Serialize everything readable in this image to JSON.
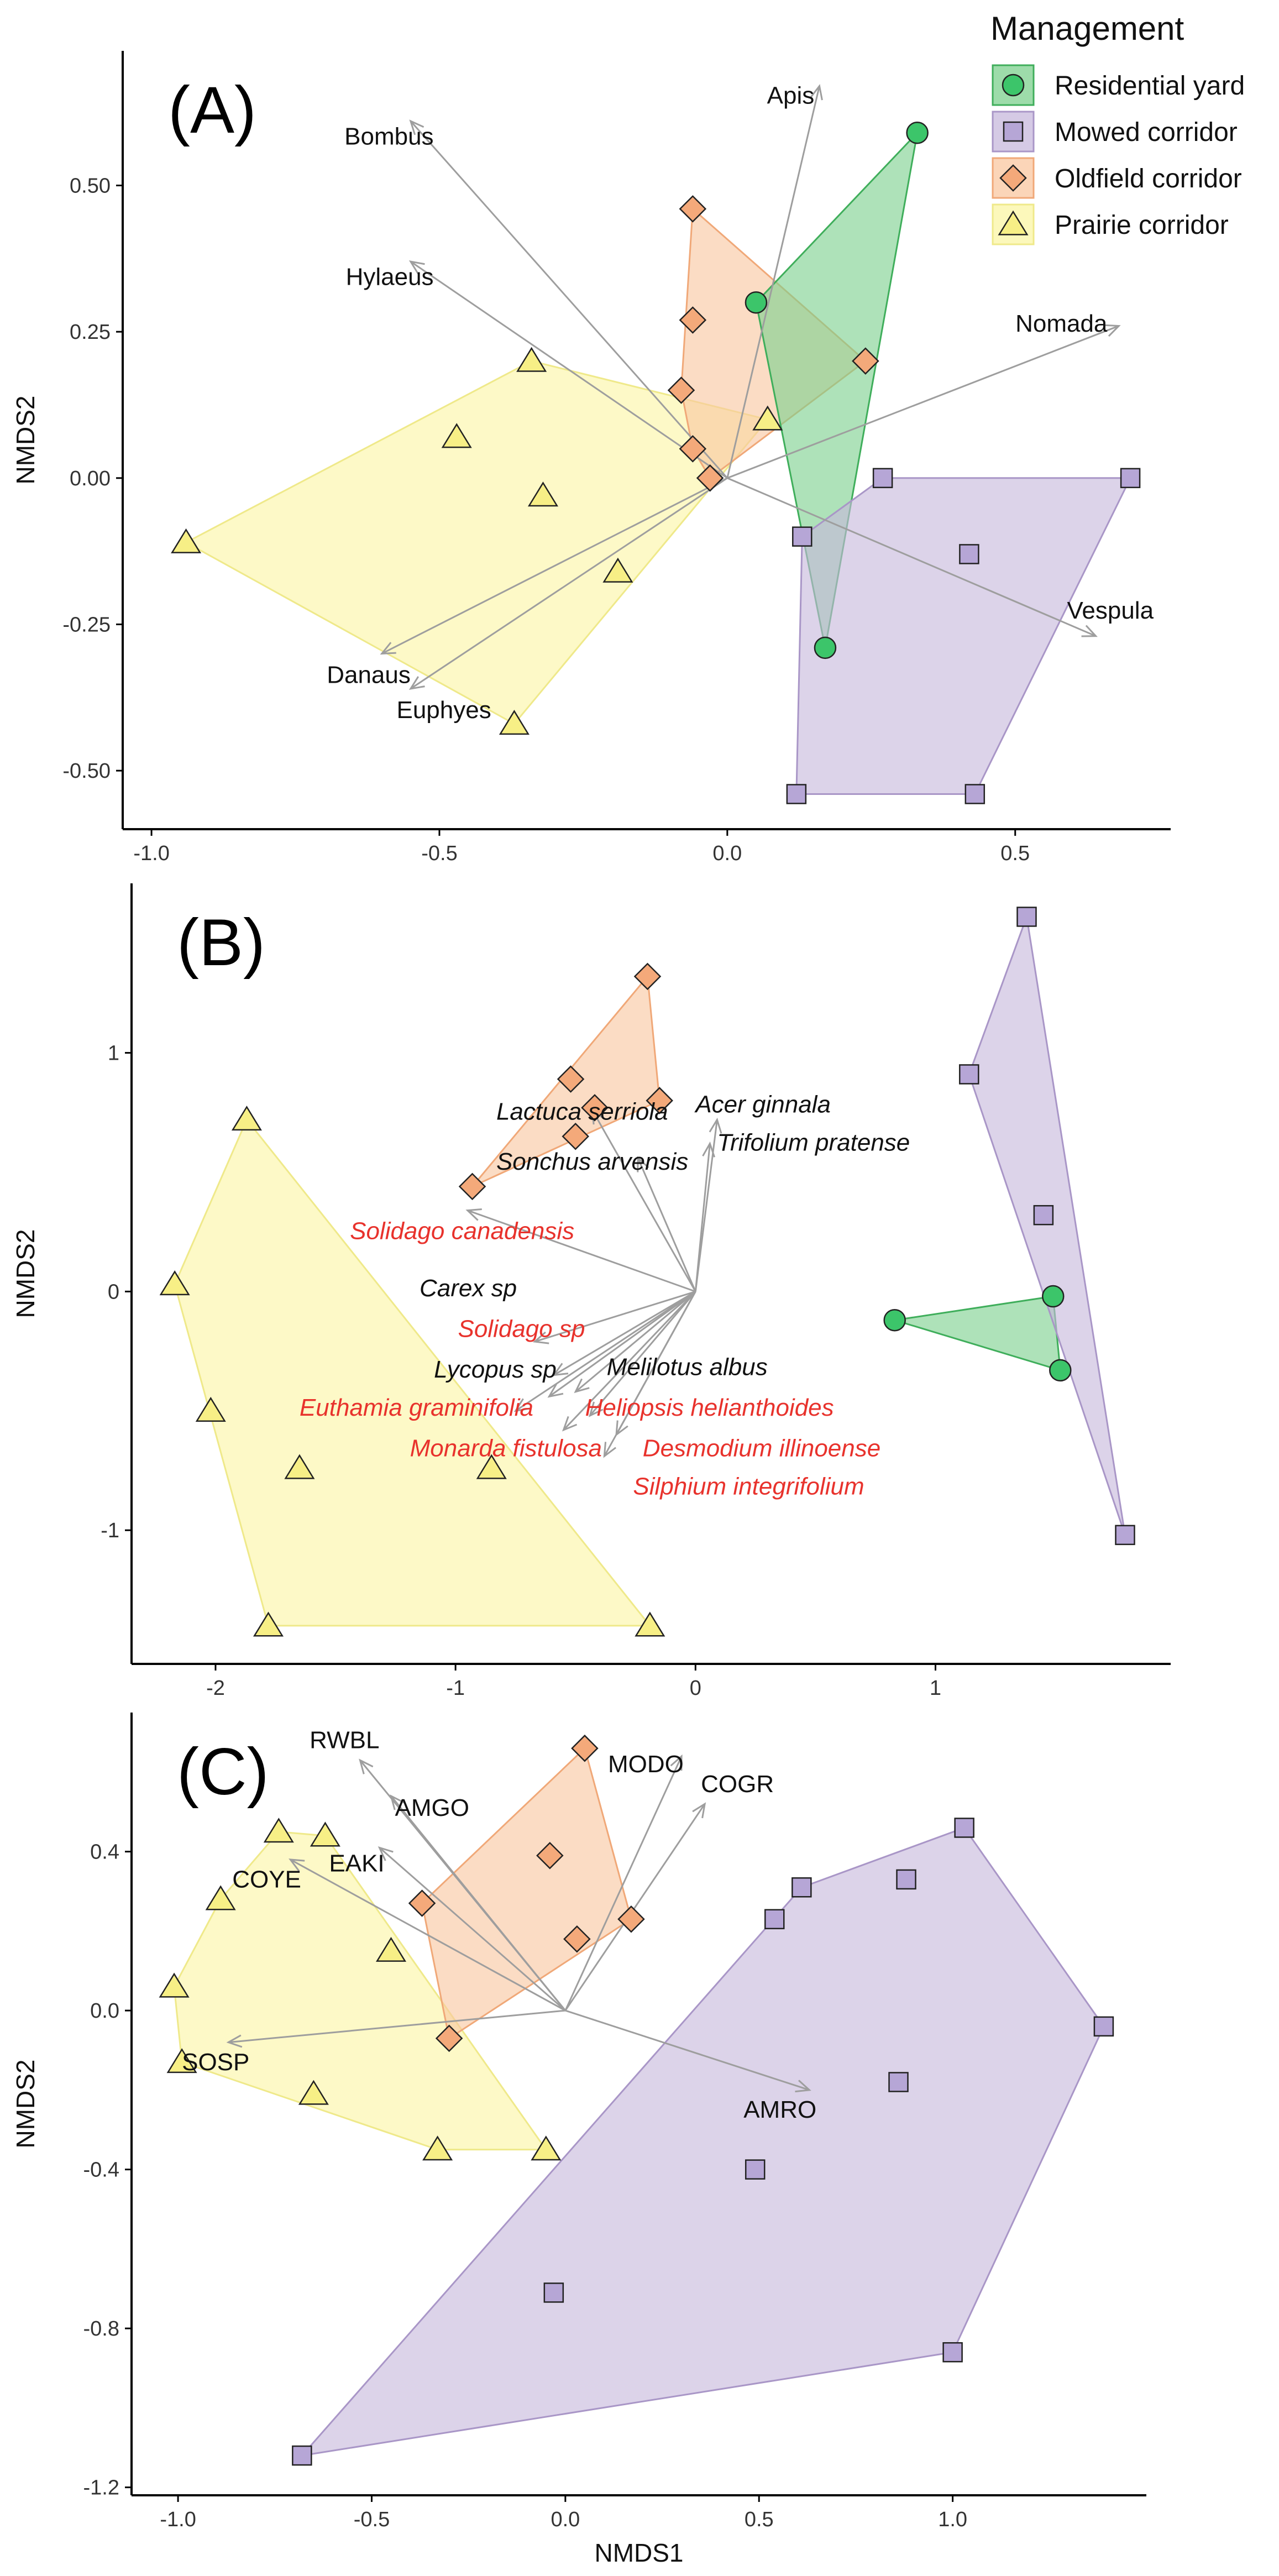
{
  "colors": {
    "Residential yard": {
      "fill": "#7cd08e",
      "stroke": "#3fae5b",
      "point": "#3cc56a"
    },
    "Mowed corridor": {
      "fill": "#c7b8dc",
      "stroke": "#a996c7",
      "point": "#b6a6d6"
    },
    "Oldfield corridor": {
      "fill": "#f9c7a0",
      "stroke": "#f0a878",
      "point": "#f4a97a"
    },
    "Prairie corridor": {
      "fill": "#fbf6a4",
      "stroke": "#efe98a",
      "point": "#f7ef86"
    },
    "black_label": "#111111",
    "red_label": "#e8322c",
    "arrow": "#9e9e9e"
  },
  "legend": {
    "title": "Management",
    "items": [
      {
        "label": "Residential yard",
        "shape": "circle"
      },
      {
        "label": "Mowed corridor",
        "shape": "square"
      },
      {
        "label": "Oldfield corridor",
        "shape": "diamond"
      },
      {
        "label": "Prairie corridor",
        "shape": "triangle"
      }
    ]
  },
  "chart_data": [
    {
      "type": "scatter",
      "panel": "(A)",
      "xlabel": "",
      "ylabel": "NMDS2",
      "xlim": [
        -1.05,
        0.77
      ],
      "ylim": [
        -0.6,
        0.73
      ],
      "xticks": [
        -1.0,
        -0.5,
        0.0,
        0.5
      ],
      "yticks": [
        -0.5,
        -0.25,
        0.0,
        0.25,
        0.5
      ],
      "xticklabels": [
        "-1.0",
        "-0.5",
        "0.0",
        "0.5"
      ],
      "yticklabels": [
        "-0.50",
        "-0.25",
        "0.00",
        "0.25",
        "0.50"
      ],
      "groups": [
        {
          "name": "Prairie corridor",
          "points": [
            [
              -0.94,
              -0.11
            ],
            [
              -0.47,
              0.07
            ],
            [
              -0.34,
              0.2
            ],
            [
              -0.32,
              -0.03
            ],
            [
              -0.19,
              -0.16
            ],
            [
              -0.37,
              -0.42
            ],
            [
              0.07,
              0.1
            ]
          ]
        },
        {
          "name": "Oldfield corridor",
          "points": [
            [
              -0.06,
              0.46
            ],
            [
              -0.06,
              0.27
            ],
            [
              -0.08,
              0.15
            ],
            [
              -0.06,
              0.05
            ],
            [
              -0.03,
              0.0
            ],
            [
              0.24,
              0.2
            ]
          ]
        },
        {
          "name": "Residential yard",
          "points": [
            [
              0.05,
              0.3
            ],
            [
              0.33,
              0.59
            ],
            [
              0.17,
              -0.29
            ]
          ]
        },
        {
          "name": "Mowed corridor",
          "points": [
            [
              0.13,
              -0.1
            ],
            [
              0.27,
              0.0
            ],
            [
              0.42,
              -0.13
            ],
            [
              0.7,
              0.0
            ],
            [
              0.43,
              -0.54
            ],
            [
              0.12,
              -0.54
            ]
          ]
        }
      ],
      "vectors": [
        {
          "label": "Apis",
          "x": 0.16,
          "y": 0.67,
          "lx": 0.11,
          "ly": 0.64,
          "anchor": "middle",
          "color": "black"
        },
        {
          "label": "Bombus",
          "x": -0.55,
          "y": 0.61,
          "lx": -0.51,
          "ly": 0.57,
          "anchor": "end",
          "color": "black"
        },
        {
          "label": "Hylaeus",
          "x": -0.55,
          "y": 0.37,
          "lx": -0.51,
          "ly": 0.33,
          "anchor": "end",
          "color": "black"
        },
        {
          "label": "Nomada",
          "x": 0.68,
          "y": 0.26,
          "lx": 0.66,
          "ly": 0.25,
          "anchor": "end",
          "color": "black"
        },
        {
          "label": "Vespula",
          "x": 0.64,
          "y": -0.27,
          "lx": 0.59,
          "ly": -0.24,
          "anchor": "start",
          "color": "black"
        },
        {
          "label": "Danaus",
          "x": -0.6,
          "y": -0.3,
          "lx": -0.55,
          "ly": -0.35,
          "anchor": "end",
          "color": "black"
        },
        {
          "label": "Euphyes",
          "x": -0.55,
          "y": -0.36,
          "lx": -0.41,
          "ly": -0.41,
          "anchor": "end",
          "color": "black"
        }
      ],
      "vector_origin": [
        0.0,
        0.0
      ]
    },
    {
      "type": "scatter",
      "panel": "(B)",
      "xlabel": "",
      "ylabel": "NMDS2",
      "xlim": [
        -2.35,
        1.98
      ],
      "ylim": [
        -1.56,
        1.71
      ],
      "xticks": [
        -2,
        -1,
        0,
        1
      ],
      "yticks": [
        -1,
        0,
        1
      ],
      "xticklabels": [
        "-2",
        "-1",
        "0",
        "1"
      ],
      "yticklabels": [
        "-1",
        "0",
        "1"
      ],
      "groups": [
        {
          "name": "Prairie corridor",
          "points": [
            [
              -2.17,
              0.03
            ],
            [
              -1.87,
              0.72
            ],
            [
              -2.02,
              -0.5
            ],
            [
              -1.65,
              -0.74
            ],
            [
              -0.85,
              -0.74
            ],
            [
              -1.78,
              -1.4
            ],
            [
              -0.19,
              -1.4
            ]
          ]
        },
        {
          "name": "Oldfield corridor",
          "points": [
            [
              -0.2,
              1.32
            ],
            [
              -0.52,
              0.89
            ],
            [
              -0.42,
              0.77
            ],
            [
              -0.15,
              0.8
            ],
            [
              -0.5,
              0.65
            ],
            [
              -0.93,
              0.44
            ]
          ]
        },
        {
          "name": "Residential yard",
          "points": [
            [
              0.83,
              -0.12
            ],
            [
              1.49,
              -0.02
            ],
            [
              1.52,
              -0.33
            ]
          ]
        },
        {
          "name": "Mowed corridor",
          "points": [
            [
              1.38,
              1.57
            ],
            [
              1.14,
              0.91
            ],
            [
              1.45,
              0.32
            ],
            [
              1.79,
              -1.02
            ]
          ]
        }
      ],
      "vectors": [
        {
          "label": "Lactuca serriola",
          "x": -0.43,
          "y": 0.76,
          "lx": -0.83,
          "ly": 0.72,
          "anchor": "start",
          "color": "black"
        },
        {
          "label": "Acer ginnala",
          "x": 0.09,
          "y": 0.72,
          "lx": 0.0,
          "ly": 0.75,
          "anchor": "start",
          "color": "black"
        },
        {
          "label": "Trifolium pratense",
          "x": 0.06,
          "y": 0.62,
          "lx": 0.09,
          "ly": 0.59,
          "anchor": "start",
          "color": "black"
        },
        {
          "label": "Sonchus arvensis",
          "x": -0.24,
          "y": 0.56,
          "lx": -0.83,
          "ly": 0.51,
          "anchor": "start",
          "color": "black"
        },
        {
          "label": "Solidago canadensis",
          "x": -0.95,
          "y": 0.34,
          "lx": -1.44,
          "ly": 0.22,
          "anchor": "start",
          "color": "red"
        },
        {
          "label": "Carex sp",
          "x": -0.67,
          "y": -0.21,
          "lx": -1.15,
          "ly": -0.02,
          "anchor": "start",
          "color": "black"
        },
        {
          "label": "Solidago sp",
          "x": -0.59,
          "y": -0.35,
          "lx": -0.99,
          "ly": -0.19,
          "anchor": "start",
          "color": "red"
        },
        {
          "label": "Lycopus sp",
          "x": -0.61,
          "y": -0.44,
          "lx": -1.09,
          "ly": -0.36,
          "anchor": "start",
          "color": "black"
        },
        {
          "label": "Melilotus albus",
          "x": -0.5,
          "y": -0.42,
          "lx": -0.37,
          "ly": -0.35,
          "anchor": "start",
          "color": "black"
        },
        {
          "label": "Euthamia graminifolia",
          "x": -0.75,
          "y": -0.5,
          "lx": -1.65,
          "ly": -0.52,
          "anchor": "start",
          "color": "red"
        },
        {
          "label": "Heliopsis helianthoides",
          "x": -0.44,
          "y": -0.52,
          "lx": -0.46,
          "ly": -0.52,
          "anchor": "start",
          "color": "red"
        },
        {
          "label": "Monarda fistulosa",
          "x": -0.55,
          "y": -0.58,
          "lx": -1.19,
          "ly": -0.69,
          "anchor": "start",
          "color": "red"
        },
        {
          "label": "Desmodium illinoense",
          "x": -0.33,
          "y": -0.6,
          "lx": -0.22,
          "ly": -0.69,
          "anchor": "start",
          "color": "red"
        },
        {
          "label": "Silphium integrifolium",
          "x": -0.38,
          "y": -0.69,
          "lx": -0.26,
          "ly": -0.85,
          "anchor": "start",
          "color": "red"
        }
      ],
      "vector_origin": [
        0.0,
        0.0
      ]
    },
    {
      "type": "scatter",
      "panel": "(C)",
      "xlabel": "NMDS1",
      "ylabel": "NMDS2",
      "xlim": [
        -1.12,
        1.5
      ],
      "ylim": [
        -1.22,
        0.75
      ],
      "xticks": [
        -1.0,
        -0.5,
        0.0,
        0.5,
        1.0
      ],
      "yticks": [
        -1.2,
        -0.8,
        -0.4,
        0.0,
        0.4
      ],
      "xticklabels": [
        "-1.0",
        "-0.5",
        "0.0",
        "0.5",
        "1.0"
      ],
      "yticklabels": [
        "-1.2",
        "-0.8",
        "-0.4",
        "0.0",
        "0.4"
      ],
      "groups": [
        {
          "name": "Prairie corridor",
          "points": [
            [
              -1.01,
              0.06
            ],
            [
              -0.89,
              0.28
            ],
            [
              -0.74,
              0.45
            ],
            [
              -0.62,
              0.44
            ],
            [
              -0.45,
              0.15
            ],
            [
              -0.65,
              -0.21
            ],
            [
              -0.33,
              -0.35
            ],
            [
              -0.05,
              -0.35
            ],
            [
              -0.99,
              -0.13
            ]
          ]
        },
        {
          "name": "Oldfield corridor",
          "points": [
            [
              0.05,
              0.66
            ],
            [
              -0.04,
              0.39
            ],
            [
              -0.37,
              0.27
            ],
            [
              0.03,
              0.18
            ],
            [
              0.17,
              0.23
            ],
            [
              -0.3,
              -0.07
            ]
          ]
        },
        {
          "name": "Mowed corridor",
          "points": [
            [
              1.03,
              0.46
            ],
            [
              0.61,
              0.31
            ],
            [
              0.54,
              0.23
            ],
            [
              0.88,
              0.33
            ],
            [
              1.39,
              -0.04
            ],
            [
              0.86,
              -0.18
            ],
            [
              0.49,
              -0.4
            ],
            [
              -0.03,
              -0.71
            ],
            [
              1.0,
              -0.86
            ],
            [
              -0.68,
              -1.12
            ]
          ]
        }
      ],
      "vectors": [
        {
          "label": "RWBL",
          "x": -0.53,
          "y": 0.63,
          "lx": -0.48,
          "ly": 0.66,
          "anchor": "end",
          "color": "black"
        },
        {
          "label": "AMGO",
          "x": -0.45,
          "y": 0.54,
          "lx": -0.44,
          "ly": 0.49,
          "anchor": "start",
          "color": "black"
        },
        {
          "label": "EAKI",
          "x": -0.48,
          "y": 0.41,
          "lx": -0.61,
          "ly": 0.35,
          "anchor": "start",
          "color": "black"
        },
        {
          "label": "COYE",
          "x": -0.71,
          "y": 0.38,
          "lx": -0.86,
          "ly": 0.31,
          "anchor": "start",
          "color": "black"
        },
        {
          "label": "MODO",
          "x": 0.3,
          "y": 0.64,
          "lx": 0.11,
          "ly": 0.6,
          "anchor": "start",
          "color": "black"
        },
        {
          "label": "COGR",
          "x": 0.36,
          "y": 0.52,
          "lx": 0.35,
          "ly": 0.55,
          "anchor": "start",
          "color": "black"
        },
        {
          "label": "SOSP",
          "x": -0.87,
          "y": -0.08,
          "lx": -0.99,
          "ly": -0.15,
          "anchor": "start",
          "color": "black"
        },
        {
          "label": "AMRO",
          "x": 0.63,
          "y": -0.2,
          "lx": 0.46,
          "ly": -0.27,
          "anchor": "start",
          "color": "black"
        }
      ],
      "vector_origin": [
        0.0,
        0.0
      ]
    }
  ]
}
